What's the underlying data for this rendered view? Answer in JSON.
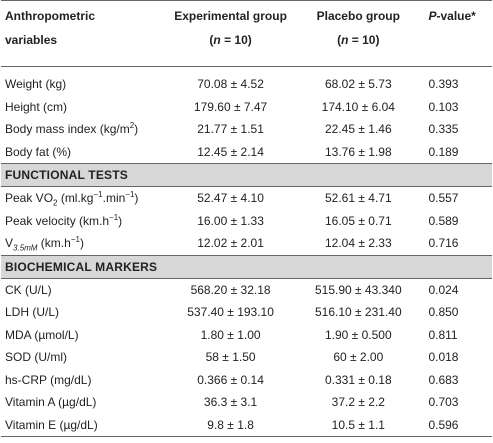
{
  "header": {
    "col1": "Anthropometric variables",
    "col2_name": "Experimental group",
    "col2_n": "(n = 10)",
    "col3_name": "Placebo group",
    "col3_n": "(n = 10)",
    "col4": "P-value*"
  },
  "anthropometric": [
    {
      "label": "Weight (kg)",
      "exp": "70.08 ± 4.52",
      "pla": "68.02 ± 5.73",
      "p": "0.393"
    },
    {
      "label": "Height (cm)",
      "exp": "179.60 ± 7.47",
      "pla": "174.10 ± 6.04",
      "p": "0.103"
    },
    {
      "label_pre": "Body mass index (kg/m",
      "label_sup": "2",
      "label_post": ")",
      "exp": "21.77 ± 1.51",
      "pla": "22.45 ± 1.46",
      "p": "0.335"
    },
    {
      "label": "Body fat (%)",
      "exp": "12.45 ± 2.14",
      "pla": "13.76 ± 1.98",
      "p": "0.189"
    }
  ],
  "functional": {
    "title": "FUNCTIONAL TESTS",
    "rows": [
      {
        "exp": "52.47 ± 4.10",
        "pla": "52.61 ± 4.71",
        "p": "0.557"
      },
      {
        "label": "Peak velocity (km.h",
        "label_sup": "−1",
        "label_post": ")",
        "exp": "16.00 ± 1.33",
        "pla": "16.05 ± 0.71",
        "p": "0.589"
      },
      {
        "label": "V",
        "label_sub": "3.5mM",
        "label_post": " (km.h",
        "label_sup": "−1",
        "label_end": ")",
        "exp": "12.02 ± 2.01",
        "pla": "12.04 ± 2.33",
        "p": "0.716"
      }
    ],
    "vo2": {
      "a": "Peak VO",
      "b": "2",
      "c": " (ml.kg",
      "d": "−1",
      "e": ".min",
      "f": "−1",
      "g": ")"
    }
  },
  "biochemical": {
    "title": "BIOCHEMICAL MARKERS",
    "rows": [
      {
        "label": "CK (U/L)",
        "exp": "568.20 ± 32.18",
        "pla": "515.90 ± 43.340",
        "p": "0.024"
      },
      {
        "label": "LDH (U/L)",
        "exp": "537.40 ± 193.10",
        "pla": "516.10 ± 231.40",
        "p": "0.850"
      },
      {
        "label": "MDA (µmol/L)",
        "exp": "1.80 ± 1.00",
        "pla": "1.90 ± 0.500",
        "p": "0.811"
      },
      {
        "label": "SOD (U/ml)",
        "exp": "58 ± 1.50",
        "pla": "60 ± 2.00",
        "p": "0.018"
      },
      {
        "label": "hs-CRP (mg/dL)",
        "exp": "0.366 ± 0.14",
        "pla": "0.331 ± 0.18",
        "p": "0.683"
      },
      {
        "label": "Vitamin A (µg/dL)",
        "exp": "36.3 ± 3.1",
        "pla": "37.2 ± 2.2",
        "p": "0.703"
      },
      {
        "label": "Vitamin E (µg/dL)",
        "exp": "9.8 ± 1.8",
        "pla": "10.5 ± 1.1",
        "p": "0.596"
      }
    ]
  }
}
